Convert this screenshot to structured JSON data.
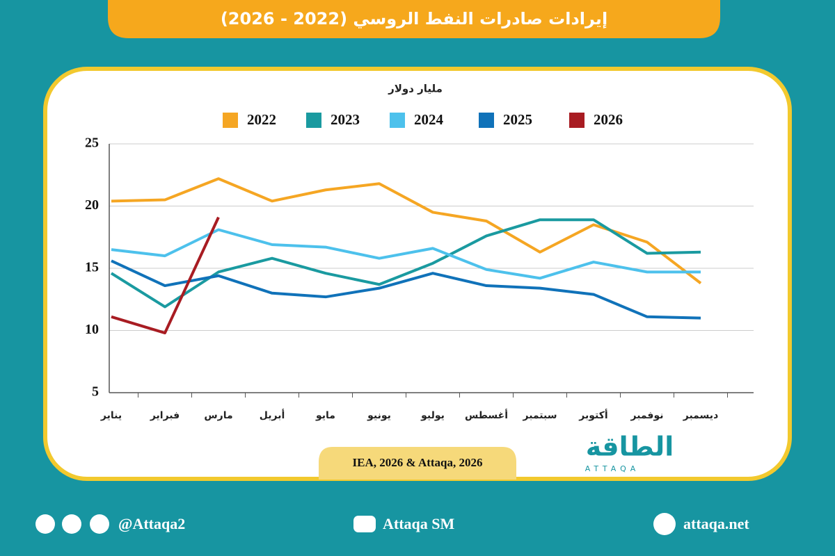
{
  "chart_data": {
    "type": "line",
    "title": "إيرادات صادرات النفط الروسي (2022 - 2026)",
    "y_label": "مليار دولار",
    "categories": [
      "يناير",
      "فبراير",
      "مارس",
      "أبريل",
      "مايو",
      "يونيو",
      "يوليو",
      "أغسطس",
      "سبتمبر",
      "أكتوبر",
      "نوفمبر",
      "ديسمبر"
    ],
    "series": [
      {
        "name": "2022",
        "color": "#f5a623",
        "values": [
          20.4,
          20.5,
          22.2,
          20.4,
          21.3,
          21.8,
          19.5,
          18.8,
          16.3,
          18.5,
          17.1,
          13.8
        ]
      },
      {
        "name": "2023",
        "color": "#1a9aa0",
        "values": [
          14.6,
          11.9,
          14.7,
          15.8,
          14.6,
          13.7,
          15.4,
          17.6,
          18.9,
          18.9,
          16.2,
          16.3
        ]
      },
      {
        "name": "2024",
        "color": "#4dc1ec",
        "values": [
          16.5,
          16.0,
          18.1,
          16.9,
          16.7,
          15.8,
          16.6,
          14.9,
          14.2,
          15.5,
          14.7,
          14.7
        ]
      },
      {
        "name": "2025",
        "color": "#1072b9",
        "values": [
          15.6,
          13.6,
          14.4,
          13.0,
          12.7,
          13.4,
          14.6,
          13.6,
          13.4,
          12.9,
          11.1,
          11.0
        ]
      },
      {
        "name": "2026",
        "color": "#a81c22",
        "values": [
          11.1,
          9.8,
          19.1,
          null,
          null,
          null,
          null,
          null,
          null,
          null,
          null,
          null
        ]
      }
    ],
    "ylim": [
      5,
      25
    ],
    "yticks": [
      5,
      10,
      15,
      20,
      25
    ],
    "grid": true
  },
  "source": "IEA, 2026 & Attaqa, 2026",
  "logo": {
    "name": "الطاقة",
    "latin": "ATTAQA"
  },
  "footer": {
    "social": "@Attaqa2",
    "youtube": "Attaqa SM",
    "website": "attaqa.net"
  }
}
